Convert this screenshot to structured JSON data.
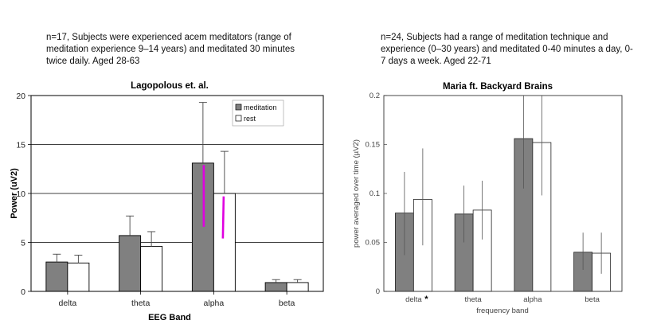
{
  "captions": {
    "left": "n=17, Subjects were experienced acem meditators (range of meditation experience 9–14 years) and meditated 30 minutes twice daily. Aged 28-63",
    "right": "n=24, Subjects had a range of meditation technique and experience (0–30 years) and meditated 0-40 minutes a day, 0-7 days a week. Aged 22-71"
  },
  "colors": {
    "meditation": "#808080",
    "rest": "#ffffff",
    "highlight": "#e000e0"
  },
  "chart_data": [
    {
      "type": "bar",
      "title": "Lagopolous et. al.",
      "xlabel": "EEG Band",
      "ylabel": "Power (uV2)",
      "categories": [
        "delta",
        "theta",
        "alpha",
        "beta"
      ],
      "ylim": [
        0,
        20
      ],
      "yticks": [
        0,
        5,
        10,
        15,
        20
      ],
      "ytick_labels": [
        "0",
        "5",
        "10",
        "15",
        "20"
      ],
      "legend": [
        "meditation",
        "rest"
      ],
      "legend_position": "top-right",
      "series": [
        {
          "name": "meditation",
          "values": [
            3.0,
            5.7,
            13.1,
            0.9
          ],
          "err_hi": [
            3.8,
            7.7,
            19.3,
            1.2
          ]
        },
        {
          "name": "rest",
          "values": [
            2.9,
            4.6,
            10.0,
            0.9
          ],
          "err_hi": [
            3.7,
            6.1,
            14.3,
            1.2
          ]
        }
      ],
      "annotations": [
        {
          "series": "meditation",
          "category": "alpha",
          "from": 6.6,
          "to": 12.9
        },
        {
          "series": "rest",
          "category": "alpha",
          "from": 5.4,
          "to": 9.7
        }
      ]
    },
    {
      "type": "bar",
      "title": "Maria ft. Backyard Brains",
      "xlabel": "frequency band",
      "ylabel": "power averaged over time (µV2)",
      "categories": [
        "delta",
        "theta",
        "alpha",
        "beta"
      ],
      "category_markers": [
        "*",
        "",
        "",
        ""
      ],
      "ylim": [
        0,
        0.2
      ],
      "yticks": [
        0,
        0.05,
        0.1,
        0.15,
        0.2
      ],
      "ytick_labels": [
        "0",
        "0.05",
        "0.1",
        "0.15",
        "0.2"
      ],
      "series": [
        {
          "name": "meditation",
          "values": [
            0.08,
            0.079,
            0.156,
            0.04
          ],
          "err_lo": [
            0.037,
            0.05,
            0.105,
            0.022
          ],
          "err_hi": [
            0.122,
            0.108,
            0.2,
            0.06
          ]
        },
        {
          "name": "rest",
          "values": [
            0.094,
            0.083,
            0.152,
            0.039
          ],
          "err_lo": [
            0.047,
            0.053,
            0.098,
            0.018
          ],
          "err_hi": [
            0.146,
            0.113,
            0.2,
            0.06
          ]
        }
      ]
    }
  ]
}
